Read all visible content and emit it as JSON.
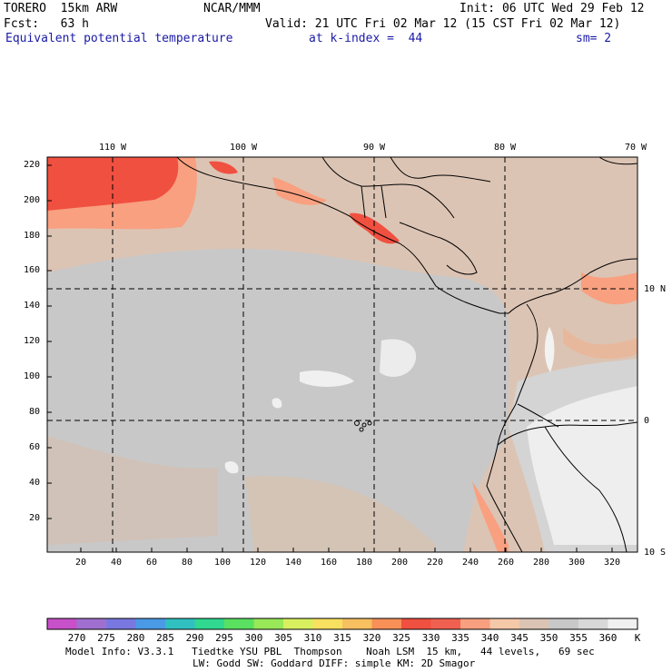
{
  "header": {
    "model": "TORERO  15km ARW",
    "center": "NCAR/MMM",
    "init": "Init: 06 UTC Wed 29 Feb 12",
    "fcst": "Fcst:   63 h",
    "valid": "Valid: 21 UTC Fri 02 Mar 12 (15 CST Fri 02 Mar 12)",
    "field": "Equivalent potential temperature",
    "level": "at k-index =  44",
    "smooth": "sm= 2"
  },
  "map": {
    "top_longitudes": [
      "110 W",
      "100 W",
      "90 W",
      "80 W",
      "70 W"
    ],
    "right_latitudes": [
      "10 N",
      "0",
      "10 S"
    ],
    "x_ticks": [
      "20",
      "40",
      "60",
      "80",
      "100",
      "120",
      "140",
      "160",
      "180",
      "200",
      "220",
      "240",
      "260",
      "280",
      "300",
      "320"
    ],
    "y_ticks": [
      "220",
      "200",
      "180",
      "160",
      "140",
      "120",
      "100",
      "80",
      "60",
      "40",
      "20"
    ]
  },
  "colorbar": {
    "unit": "K",
    "labels": [
      "270",
      "275",
      "280",
      "285",
      "290",
      "295",
      "300",
      "305",
      "310",
      "315",
      "320",
      "325",
      "330",
      "335",
      "340",
      "345",
      "350",
      "355",
      "360"
    ],
    "colors": [
      "#c850c8",
      "#a070d0",
      "#7878e0",
      "#4a9ae6",
      "#30c0c0",
      "#30d890",
      "#5ae060",
      "#98e858",
      "#d8f060",
      "#f8e060",
      "#f8c060",
      "#f89058",
      "#f05040",
      "#f06050",
      "#f8a080",
      "#f5c8a8",
      "#dcc4b4",
      "#c8c8c8",
      "#d8d8d8",
      "#f0f0f0"
    ]
  },
  "footer": {
    "line1": "Model Info: V3.3.1   Tiedtke YSU PBL  Thompson    Noah LSM  15 km,   44 levels,   69 sec",
    "line2": "LW: Godd SW: Goddard DIFF: simple KM: 2D Smagor"
  }
}
